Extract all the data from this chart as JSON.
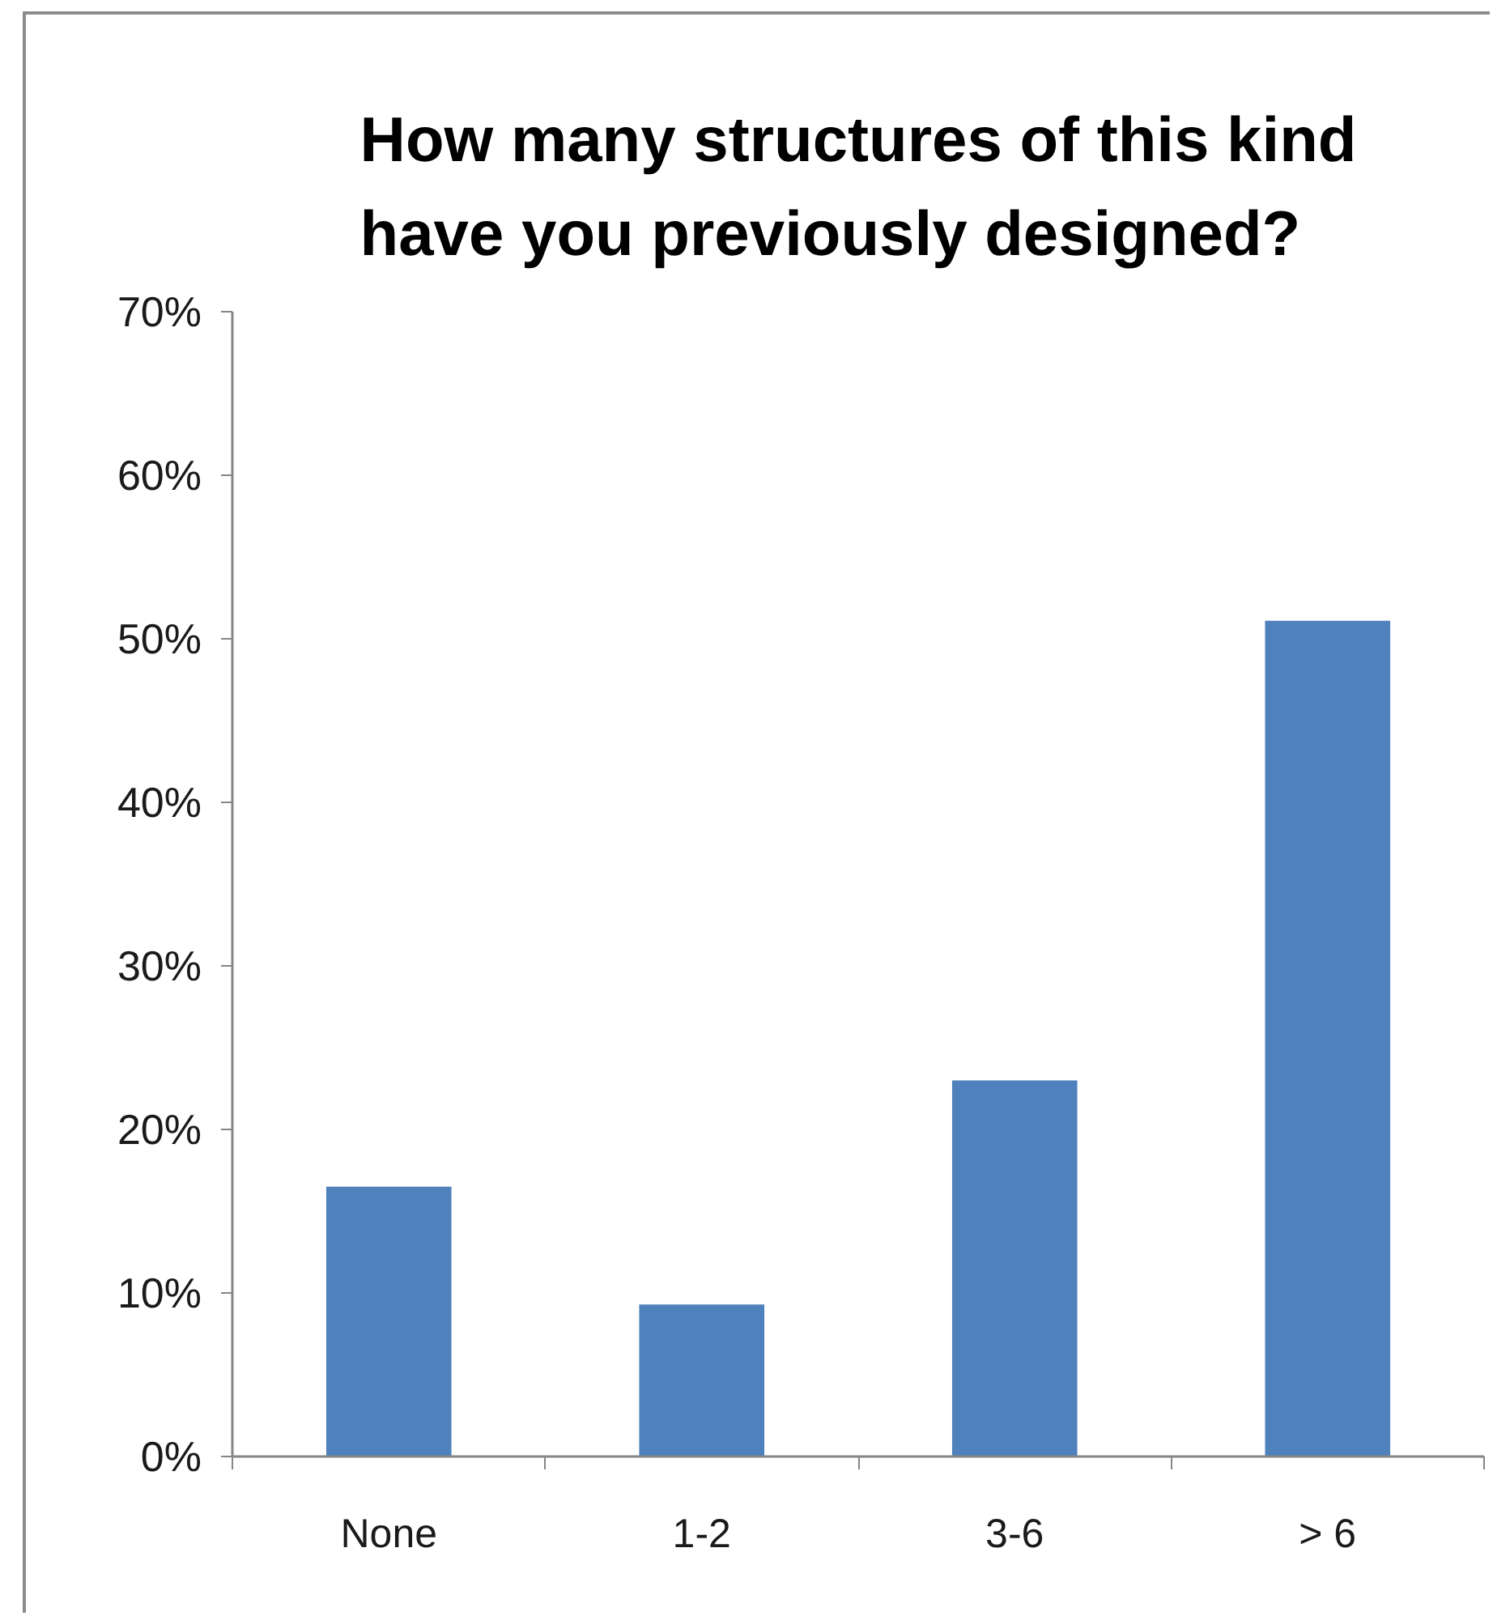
{
  "chart_data": {
    "type": "bar",
    "title": "How many structures of this kind have you previously designed?",
    "categories": [
      "None",
      "1-2",
      "3-6",
      "> 6"
    ],
    "values": [
      16.5,
      9.3,
      23.0,
      51.1
    ],
    "color": "#4f81bd",
    "ylim": [
      0,
      70
    ],
    "yticks": [
      {
        "value": 0,
        "label": "0%"
      },
      {
        "value": 10,
        "label": "10%"
      },
      {
        "value": 20,
        "label": "20%"
      },
      {
        "value": 30,
        "label": "30%"
      },
      {
        "value": 40,
        "label": "40%"
      },
      {
        "value": 50,
        "label": "50%"
      },
      {
        "value": 60,
        "label": "60%"
      },
      {
        "value": 70,
        "label": "70%"
      }
    ],
    "grid": false
  }
}
